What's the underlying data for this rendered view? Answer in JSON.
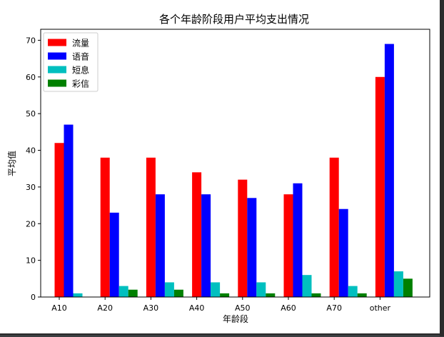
{
  "chart_data": {
    "type": "bar",
    "title": "各个年龄阶段用户平均支出情况",
    "xlabel": "年龄段",
    "ylabel": "平均值",
    "categories": [
      "A10",
      "A20",
      "A30",
      "A40",
      "A50",
      "A60",
      "A70",
      "other"
    ],
    "ylim": [
      0,
      73
    ],
    "yticks": [
      0,
      10,
      20,
      30,
      40,
      50,
      60,
      70
    ],
    "grid": false,
    "legend_position": "top-left",
    "series": [
      {
        "name": "流量",
        "color": "#ff0000",
        "values": [
          42,
          38,
          38,
          34,
          32,
          28,
          38,
          60
        ]
      },
      {
        "name": "语音",
        "color": "#0000ff",
        "values": [
          47,
          23,
          28,
          28,
          27,
          31,
          24,
          69
        ]
      },
      {
        "name": "短息",
        "color": "#00bfbf",
        "values": [
          1,
          3,
          4,
          4,
          4,
          6,
          3,
          7
        ]
      },
      {
        "name": "彩信",
        "color": "#008000",
        "values": [
          0,
          2,
          2,
          1,
          1,
          1,
          1,
          5
        ]
      }
    ]
  }
}
